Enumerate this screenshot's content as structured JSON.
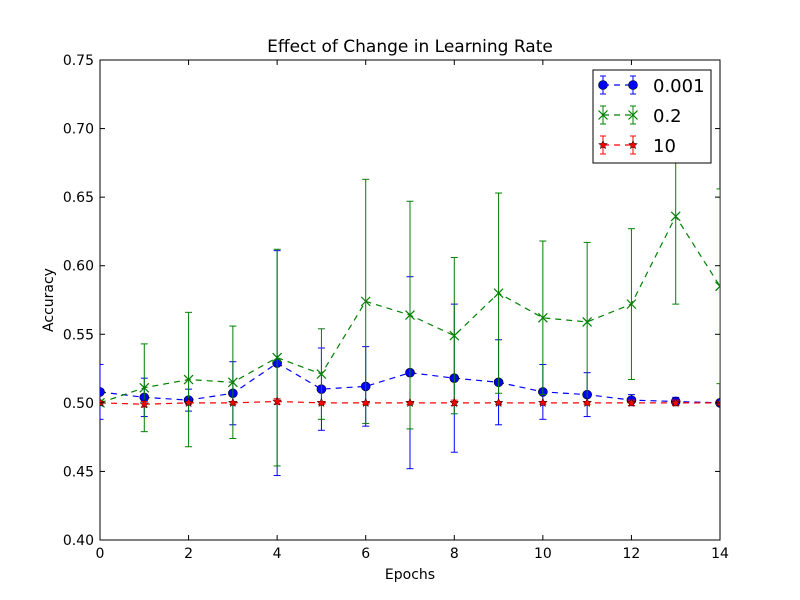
{
  "chart_data": {
    "type": "line",
    "title": "Effect of Change in Learning Rate",
    "xlabel": "Epochs",
    "ylabel": "Accuracy",
    "xlim": [
      0,
      14
    ],
    "ylim": [
      0.4,
      0.75
    ],
    "xticks": [
      "0",
      "2",
      "4",
      "6",
      "8",
      "10",
      "12",
      "14"
    ],
    "yticks": [
      "0.40",
      "0.45",
      "0.50",
      "0.55",
      "0.60",
      "0.65",
      "0.70",
      "0.75"
    ],
    "grid": false,
    "legend_position": "top-right",
    "x": [
      0,
      1,
      2,
      3,
      4,
      5,
      6,
      7,
      8,
      9,
      10,
      11,
      12,
      13,
      14
    ],
    "series": [
      {
        "name": "0.001",
        "color": "#0000ff",
        "marker": "circle",
        "values": [
          0.508,
          0.504,
          0.502,
          0.507,
          0.529,
          0.51,
          0.512,
          0.522,
          0.518,
          0.515,
          0.508,
          0.506,
          0.502,
          0.501,
          0.5
        ],
        "err": [
          0.02,
          0.014,
          0.008,
          0.023,
          0.082,
          0.03,
          0.029,
          0.07,
          0.054,
          0.031,
          0.02,
          0.016,
          0.004,
          0.003,
          0.002
        ]
      },
      {
        "name": "0.2",
        "color": "#008000",
        "marker": "x",
        "values": [
          0.5,
          0.511,
          0.517,
          0.515,
          0.533,
          0.521,
          0.574,
          0.564,
          0.549,
          0.58,
          0.562,
          0.559,
          0.572,
          0.636,
          0.585
        ],
        "err": [
          0.002,
          0.032,
          0.049,
          0.041,
          0.079,
          0.033,
          0.089,
          0.083,
          0.057,
          0.073,
          0.056,
          0.058,
          0.055,
          0.064,
          0.071
        ]
      },
      {
        "name": "10",
        "color": "#ff0000",
        "marker": "star",
        "values": [
          0.5,
          0.499,
          0.5,
          0.5,
          0.501,
          0.5,
          0.5,
          0.5,
          0.5,
          0.5,
          0.5,
          0.5,
          0.5,
          0.5,
          0.5
        ],
        "err": [
          0.001,
          0.002,
          0.001,
          0.001,
          0.002,
          0.001,
          0.001,
          0.001,
          0.002,
          0.001,
          0.001,
          0.001,
          0.002,
          0.002,
          0.001
        ]
      }
    ]
  }
}
